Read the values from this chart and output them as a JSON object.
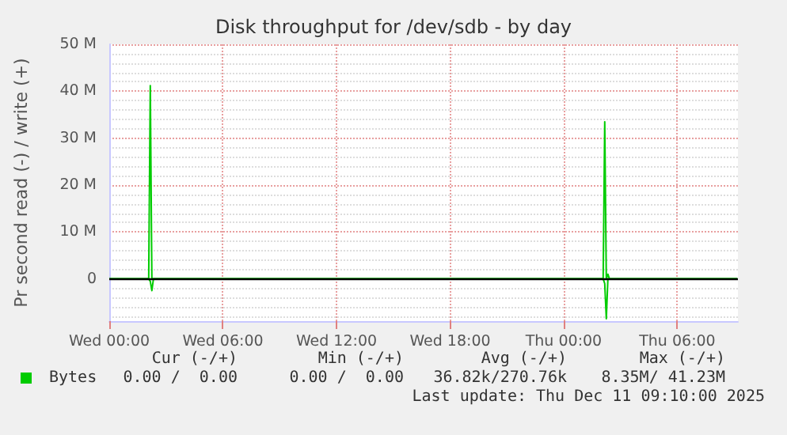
{
  "chart_data": {
    "type": "line",
    "title": "Disk throughput for /dev/sdb - by day",
    "ylabel": "Pr second read (-) / write (+)",
    "series": [
      {
        "name": "Bytes",
        "color": "#00cc00",
        "x": [
          "2025-12-10T00:00",
          "2025-12-10T02:00",
          "2025-12-10T02:05",
          "2025-12-10T02:10",
          "2025-12-10T02:15",
          "2025-12-10T02:20",
          "2025-12-11T02:00",
          "2025-12-11T02:05",
          "2025-12-11T02:10",
          "2025-12-11T02:15",
          "2025-12-11T02:20",
          "2025-12-11T02:25",
          "2025-12-11T09:10"
        ],
        "values": [
          0,
          0,
          0,
          41.2,
          0,
          0,
          0,
          0,
          33.5,
          0,
          1,
          0,
          0
        ]
      },
      {
        "color": "#00cc00",
        "x": [
          "2025-12-10T00:00",
          "2025-12-10T02:00",
          "2025-12-10T02:05",
          "2025-12-10T02:10",
          "2025-12-10T02:15",
          "2025-12-10T02:20",
          "2025-12-11T02:00",
          "2025-12-11T02:05",
          "2025-12-11T02:10",
          "2025-12-11T02:15",
          "2025-12-11T02:20",
          "2025-12-11T02:25",
          "2025-12-11T09:10"
        ],
        "values": [
          0,
          0,
          0,
          -0.5,
          -2.5,
          0,
          0,
          0,
          -1,
          -8.5,
          0,
          0,
          0
        ]
      }
    ],
    "xlim": [
      "2025-12-10T00:00",
      "2025-12-11T09:12"
    ],
    "xticks": [
      {
        "value": "2025-12-10T00:00",
        "label": "Wed 00:00"
      },
      {
        "value": "2025-12-10T06:00",
        "label": "Wed 06:00"
      },
      {
        "value": "2025-12-10T12:00",
        "label": "Wed 12:00"
      },
      {
        "value": "2025-12-10T18:00",
        "label": "Wed 18:00"
      },
      {
        "value": "2025-12-11T00:00",
        "label": "Thu 00:00"
      },
      {
        "value": "2025-12-11T06:00",
        "label": "Thu 06:00"
      }
    ],
    "ylim": [
      -9,
      50
    ],
    "yticks": [
      {
        "value": 0,
        "label": "0"
      },
      {
        "value": 10,
        "label": "10 M"
      },
      {
        "value": 20,
        "label": "20 M"
      },
      {
        "value": 30,
        "label": "30 M"
      },
      {
        "value": 40,
        "label": "40 M"
      },
      {
        "value": 50,
        "label": "50 M"
      }
    ],
    "ref_lines": [
      {
        "axis": "y",
        "value": 0,
        "color": "#000000"
      }
    ],
    "grid": true,
    "legend": "bottom left",
    "marker": "none",
    "line_style": "solid",
    "annotations": [
      "Cur (-/+)",
      "Min (-/+)",
      "Avg (-/+)",
      "Max (-/+)",
      "0.00 /  0.00",
      "0.00 /  0.00",
      "36.82k/270.76k",
      "8.35M/ 41.23M",
      "Last update: Thu Dec 11 09:10:00 2025"
    ]
  }
}
